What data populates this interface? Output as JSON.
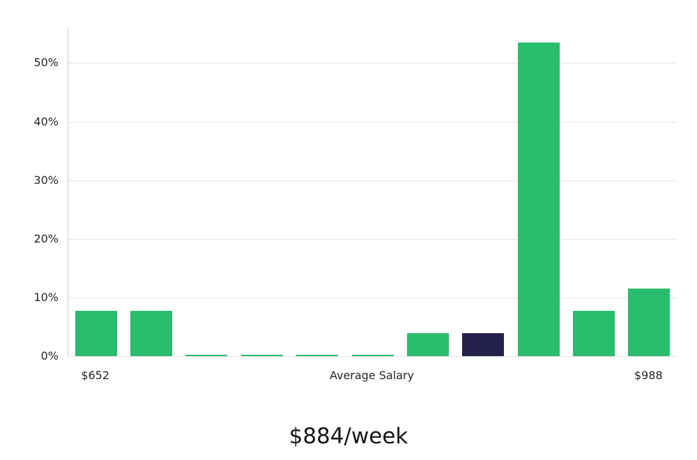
{
  "chart_data": {
    "type": "bar",
    "title": "$884/week",
    "y_ticks": [
      "0%",
      "10%",
      "20%",
      "30%",
      "40%",
      "50%"
    ],
    "ylim": [
      0,
      56
    ],
    "values": [
      7.7,
      7.7,
      0.2,
      0.2,
      0.2,
      0.2,
      3.9,
      3.9,
      53.5,
      7.7,
      11.5
    ],
    "highlight_index": 7,
    "colors": {
      "bar": "#2bbd6e",
      "highlight": "#23224e",
      "gridline": "#e4e4e4",
      "axis": "#cfcfcf",
      "text": "#262626"
    },
    "grid": true,
    "legend": "none",
    "x_axis_labels": {
      "left": "$652",
      "center": "Average Salary",
      "right": "$988"
    }
  }
}
